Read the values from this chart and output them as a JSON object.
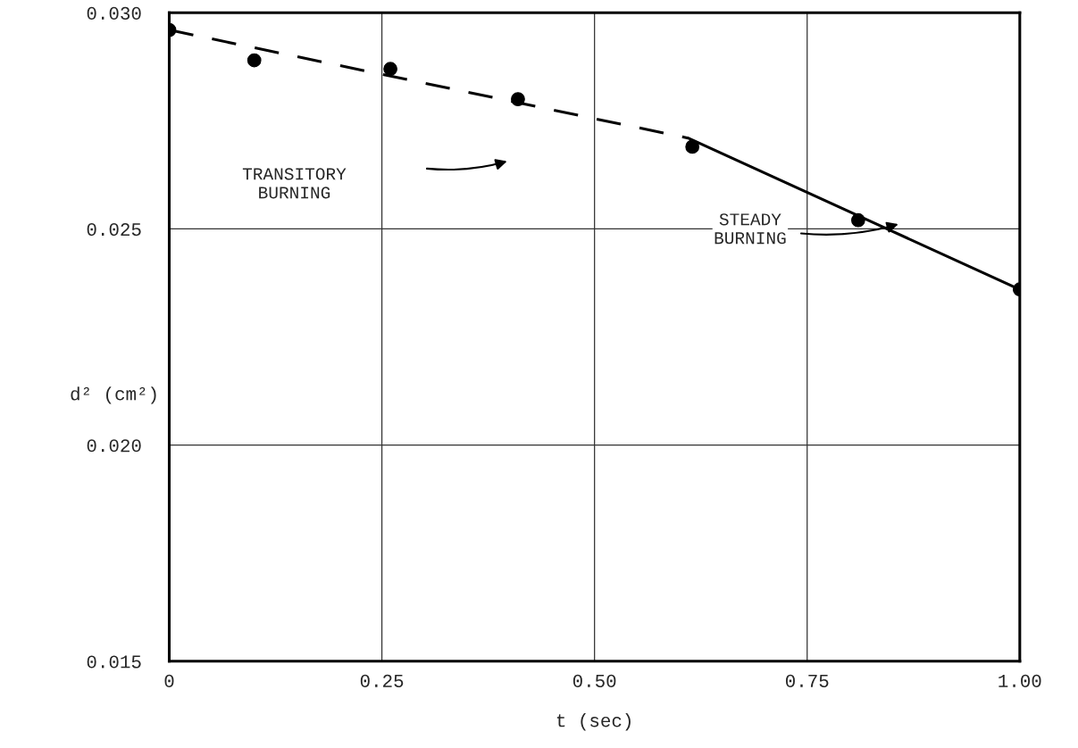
{
  "chart_data": {
    "type": "line",
    "xlabel": "t (sec)",
    "ylabel": "d² (cm²)",
    "xlim": [
      0,
      1.0
    ],
    "ylim": [
      0.015,
      0.03
    ],
    "xticks": [
      {
        "value": 0,
        "label": "0"
      },
      0.25,
      {
        "value": 0.5,
        "label": "0.50"
      },
      0.75,
      {
        "value": 1.0,
        "label": "1.00"
      }
    ],
    "yticks": [
      {
        "value": 0.015,
        "label": "0.015"
      },
      {
        "value": 0.02,
        "label": "0.020"
      },
      {
        "value": 0.025,
        "label": "0.025"
      },
      {
        "value": 0.03,
        "label": "0.030"
      }
    ],
    "grid": true,
    "legend": false,
    "series": [
      {
        "line_style": "dashed",
        "marker": "none",
        "color": "#000000",
        "x": [
          0,
          0.61
        ],
        "values": [
          0.0296,
          0.0271
        ]
      },
      {
        "line_style": "solid",
        "marker": "none",
        "color": "#000000",
        "x": [
          0.61,
          1.0
        ],
        "values": [
          0.0271,
          0.0236
        ]
      },
      {
        "type": "scatter",
        "marker": "circle",
        "color": "#000000",
        "x": [
          0,
          0.1,
          0.26,
          0.41,
          0.615,
          0.81,
          1.0
        ],
        "values": [
          0.0296,
          0.0289,
          0.0287,
          0.028,
          0.0269,
          0.0252,
          0.0236
        ]
      }
    ],
    "annotations": [
      "TRANSITORY\nBURNING",
      "STEADY\nBURNING"
    ]
  }
}
